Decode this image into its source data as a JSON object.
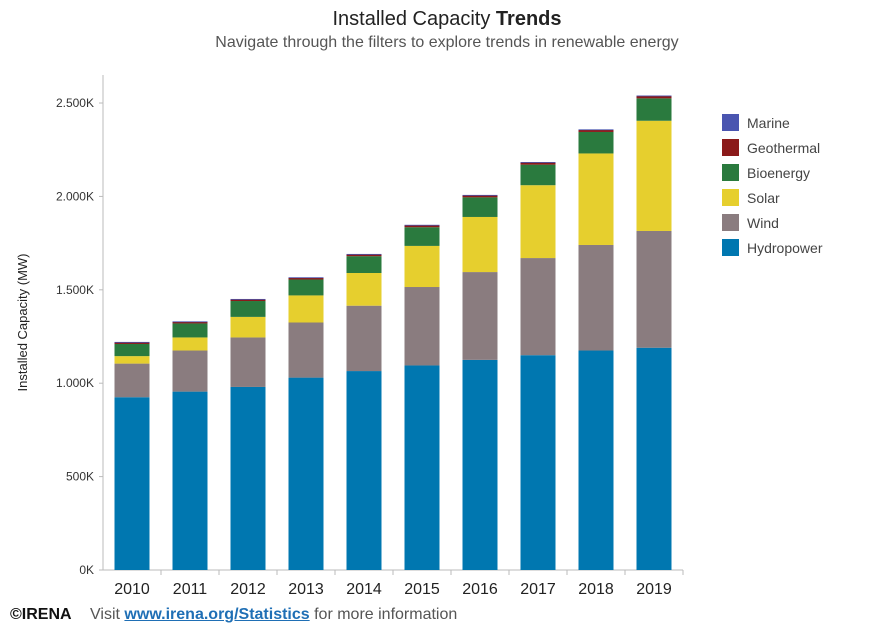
{
  "header": {
    "title_main": "Installed Capacity ",
    "title_bold": "Trends",
    "subtitle": "Navigate through the filters to explore trends in renewable energy"
  },
  "footer": {
    "brand": "©IRENA",
    "visit": "Visit ",
    "link": "www.irena.org/Statistics",
    "tail": " for more information"
  },
  "colors": {
    "Hydropower": "#0077b0",
    "Wind": "#8a7c7f",
    "Solar": "#e6cf2e",
    "Bioenergy": "#2a7a3e",
    "Geothermal": "#8b1a1a",
    "Marine": "#4a55b0"
  },
  "legend_order": [
    "Marine",
    "Geothermal",
    "Bioenergy",
    "Solar",
    "Wind",
    "Hydropower"
  ],
  "chart_data": {
    "type": "bar",
    "stacked": true,
    "ylabel": "Installed Capacity (MW)",
    "ylim": [
      0,
      2650
    ],
    "y_ticks": [
      0,
      500,
      1000,
      1500,
      2000,
      2500
    ],
    "y_tick_labels": [
      "0K",
      "500K",
      "1.000K",
      "1.500K",
      "2.000K",
      "2.500K"
    ],
    "categories": [
      "2010",
      "2011",
      "2012",
      "2013",
      "2014",
      "2015",
      "2016",
      "2017",
      "2018",
      "2019"
    ],
    "series": [
      {
        "name": "Hydropower",
        "values": [
          925,
          955,
          980,
          1030,
          1065,
          1095,
          1125,
          1150,
          1175,
          1190
        ]
      },
      {
        "name": "Wind",
        "values": [
          180,
          220,
          265,
          295,
          350,
          420,
          470,
          520,
          565,
          625
        ]
      },
      {
        "name": "Solar",
        "values": [
          40,
          70,
          110,
          145,
          175,
          220,
          295,
          390,
          490,
          590
        ]
      },
      {
        "name": "Bioenergy",
        "values": [
          65,
          75,
          85,
          85,
          90,
          100,
          105,
          110,
          115,
          120
        ]
      },
      {
        "name": "Geothermal",
        "values": [
          10,
          10,
          10,
          11,
          11,
          12,
          12,
          13,
          13,
          14
        ]
      },
      {
        "name": "Marine",
        "values": [
          1,
          1,
          1,
          1,
          1,
          1,
          1,
          1,
          1,
          1
        ]
      }
    ]
  }
}
